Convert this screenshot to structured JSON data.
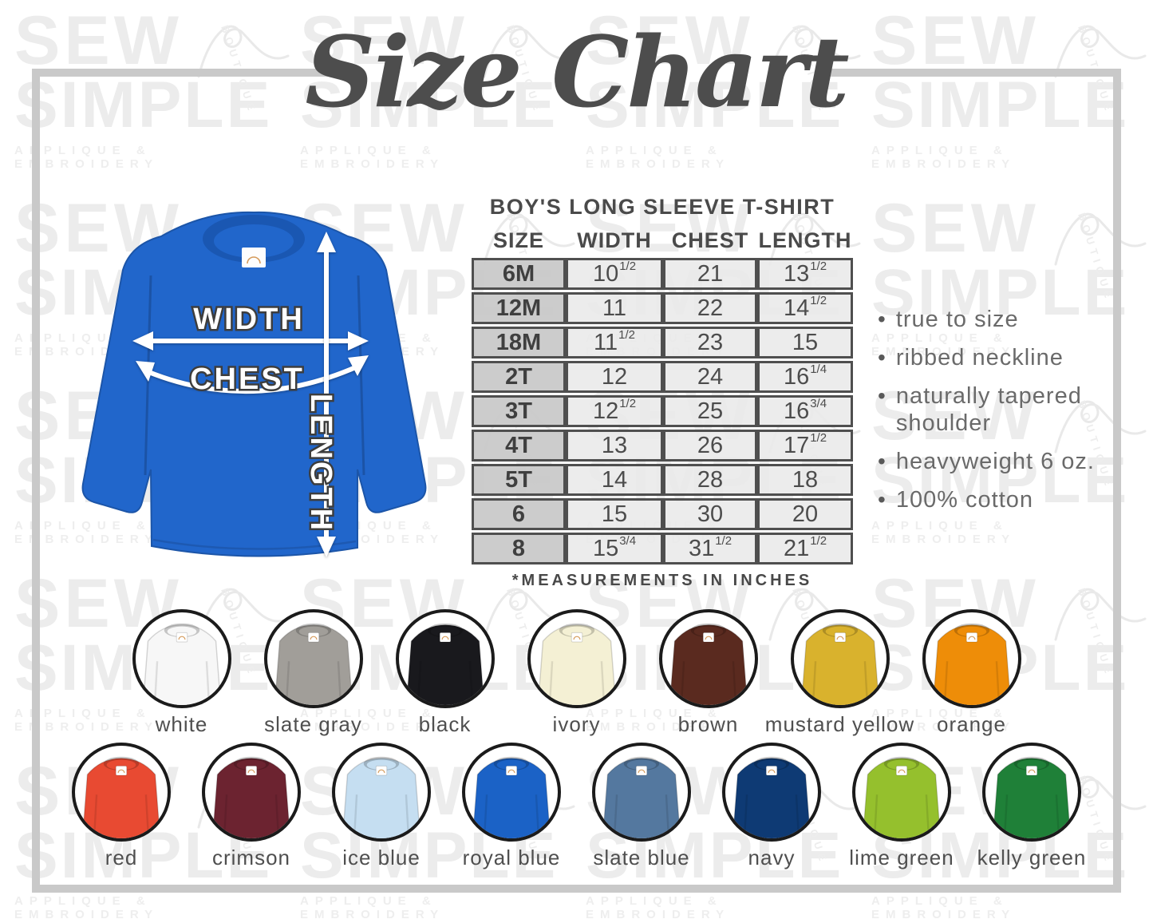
{
  "page_title": "Size Chart",
  "watermark": {
    "word1": "SEW",
    "word2": "SIMPLE",
    "tagline": "APPLIQUE & EMBROIDERY",
    "script_word": "BOUTIQUE"
  },
  "diagram": {
    "width_label": "WIDTH",
    "chest_label": "CHEST",
    "length_label": "LENGTH",
    "shirt_color": "#2166cb"
  },
  "table": {
    "title": "BOY'S LONG SLEEVE T-SHIRT",
    "headers": [
      "SIZE",
      "WIDTH",
      "CHEST",
      "LENGTH"
    ],
    "rows": [
      {
        "size": "6M",
        "width": "10 1/2",
        "chest": "21",
        "length": "13 1/2"
      },
      {
        "size": "12M",
        "width": "11",
        "chest": "22",
        "length": "14 1/2"
      },
      {
        "size": "18M",
        "width": "11 1/2",
        "chest": "23",
        "length": "15"
      },
      {
        "size": "2T",
        "width": "12",
        "chest": "24",
        "length": "16 1/4"
      },
      {
        "size": "3T",
        "width": "12 1/2",
        "chest": "25",
        "length": "16 3/4"
      },
      {
        "size": "4T",
        "width": "13",
        "chest": "26",
        "length": "17 1/2"
      },
      {
        "size": "5T",
        "width": "14",
        "chest": "28",
        "length": "18"
      },
      {
        "size": "6",
        "width": "15",
        "chest": "30",
        "length": "20"
      },
      {
        "size": "8",
        "width": "15 3/4",
        "chest": "31 1/2",
        "length": "21 1/2"
      }
    ],
    "note": "*MEASUREMENTS IN INCHES"
  },
  "features": [
    "true to size",
    "ribbed neckline",
    "naturally tapered shoulder",
    "heavyweight 6 oz.",
    "100% cotton"
  ],
  "swatch_rows": [
    [
      {
        "name": "white",
        "hex": "#f7f7f7"
      },
      {
        "name": "slate gray",
        "hex": "#a19e99"
      },
      {
        "name": "black",
        "hex": "#19191d"
      },
      {
        "name": "ivory",
        "hex": "#f4f0d4"
      },
      {
        "name": "brown",
        "hex": "#5a2a1f"
      },
      {
        "name": "mustard yellow",
        "hex": "#d9b22d"
      },
      {
        "name": "orange",
        "hex": "#ee8d08"
      }
    ],
    [
      {
        "name": "red",
        "hex": "#e84a32"
      },
      {
        "name": "crimson",
        "hex": "#6c2330"
      },
      {
        "name": "ice blue",
        "hex": "#c5def1"
      },
      {
        "name": "royal blue",
        "hex": "#1b62c6"
      },
      {
        "name": "slate blue",
        "hex": "#54789f"
      },
      {
        "name": "navy",
        "hex": "#0e3a74"
      },
      {
        "name": "lime green",
        "hex": "#95c02d"
      },
      {
        "name": "kelly green",
        "hex": "#1f8038"
      }
    ]
  ]
}
